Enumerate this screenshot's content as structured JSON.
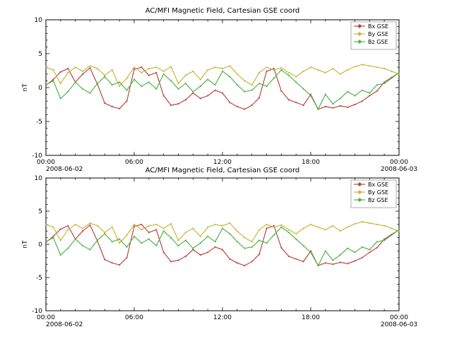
{
  "page": {
    "background": "#ffffff"
  },
  "chart_data": {
    "type": "line",
    "panel_count": 2,
    "panels_show_same_data": true,
    "panel_titles": [
      "AC/MFI  Magnetic Field, Cartesian GSE coord",
      "AC/MFI  Magnetic Field, Cartesian GSE coord"
    ],
    "ylabel": "nT",
    "ylim": [
      -10,
      10
    ],
    "yticks": [
      {
        "value": 10,
        "label": "10"
      },
      {
        "value": 5,
        "label": "5"
      },
      {
        "value": 0,
        "label": "0"
      },
      {
        "value": -5,
        "label": "-5"
      },
      {
        "value": -10,
        "label": "-10"
      }
    ],
    "xlim_hours": [
      0,
      24
    ],
    "xticks": [
      {
        "hour": 0,
        "label": "00:00",
        "date": "2008-06-02"
      },
      {
        "hour": 6,
        "label": "06:00"
      },
      {
        "hour": 12,
        "label": "12:00"
      },
      {
        "hour": 18,
        "label": "18:00"
      },
      {
        "hour": 24,
        "label": "00:00",
        "date": "2008-06-03"
      }
    ],
    "legend": {
      "position": "top-right"
    },
    "x_hours": [
      0,
      0.5,
      1,
      1.5,
      2,
      2.5,
      3,
      3.5,
      4,
      4.5,
      5,
      5.5,
      6,
      6.5,
      7,
      7.5,
      8,
      8.5,
      9,
      9.5,
      10,
      10.5,
      11,
      11.5,
      12,
      12.5,
      13,
      13.5,
      14,
      14.5,
      15,
      15.5,
      16,
      16.5,
      17,
      17.5,
      18,
      18.5,
      19,
      19.5,
      20,
      20.5,
      21,
      21.5,
      22,
      22.5,
      23,
      23.5,
      24
    ],
    "series": [
      {
        "name": "Bx GSE",
        "color": "#bb4742",
        "values": [
          0.3,
          1.2,
          2.3,
          2.8,
          0.8,
          2.0,
          2.9,
          0.5,
          -2.3,
          -2.8,
          -3.1,
          -2.0,
          2.7,
          3.0,
          1.8,
          2.2,
          -1.2,
          -2.6,
          -2.4,
          -1.8,
          -0.8,
          -1.6,
          -1.2,
          -0.4,
          -0.8,
          -2.2,
          -2.8,
          -3.2,
          -2.6,
          -1.5,
          2.4,
          2.8,
          -0.5,
          -1.8,
          -2.2,
          -2.6,
          -1.0,
          -3.2,
          -2.8,
          -3.0,
          -2.7,
          -2.9,
          -2.5,
          -2.0,
          -1.2,
          -0.5,
          0.8,
          1.5,
          2.2
        ]
      },
      {
        "name": "By GSE",
        "color": "#c6b83a",
        "values": [
          3.0,
          2.6,
          0.6,
          2.2,
          3.0,
          2.4,
          3.2,
          2.8,
          1.8,
          2.6,
          0.2,
          1.4,
          3.0,
          2.2,
          2.8,
          3.0,
          2.4,
          3.1,
          0.6,
          1.8,
          2.4,
          1.2,
          2.6,
          3.0,
          2.8,
          3.2,
          2.0,
          1.0,
          0.4,
          2.2,
          3.0,
          2.6,
          2.9,
          2.2,
          1.6,
          2.4,
          3.0,
          2.6,
          2.2,
          2.8,
          2.0,
          2.6,
          3.1,
          3.4,
          3.2,
          3.0,
          2.8,
          2.4,
          2.0
        ]
      },
      {
        "name": "Bz GSE",
        "color": "#52b548",
        "values": [
          0.4,
          1.0,
          -1.6,
          -0.6,
          0.8,
          -0.2,
          -0.8,
          0.6,
          1.6,
          0.4,
          0.8,
          -0.4,
          1.2,
          0.2,
          0.8,
          -0.2,
          2.0,
          1.0,
          -0.2,
          0.6,
          -0.6,
          0.2,
          1.2,
          0.4,
          2.4,
          1.6,
          0.4,
          -0.6,
          -0.4,
          0.6,
          0.2,
          1.4,
          2.6,
          1.8,
          0.8,
          -0.2,
          -1.2,
          -3.2,
          -1.0,
          -2.4,
          -1.6,
          -0.6,
          -1.2,
          -0.4,
          -0.8,
          0.4,
          0.6,
          1.4,
          2.2
        ]
      }
    ]
  }
}
